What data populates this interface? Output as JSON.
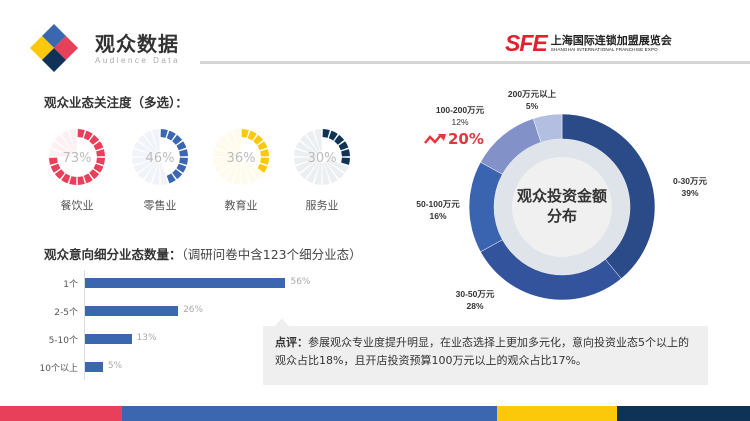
{
  "header": {
    "title": "观众数据",
    "subtitle": "Audience Data",
    "brand_mark": "SFE",
    "brand_cn": "上海国际连锁加盟展览会",
    "brand_en": "SHANGHAI INTERNATIONAL FRANCHISE EXPO"
  },
  "colors": {
    "red": "#e8405a",
    "blue": "#3b66b0",
    "yellow": "#fcc80a",
    "navy": "#0f3257",
    "accent_red": "#e8343f"
  },
  "section1": {
    "title": "观众业态关注度（多选）："
  },
  "section2": {
    "title": "观众意向细分业态数量：",
    "note": "（调研问卷中含123个细分业态）"
  },
  "comment": {
    "label": "点评：",
    "text": "参展观众专业度提升明显，在业态选择上更加多元化，意向投资业态5个以上的观众占比18%，且开店投资预算100万元以上的观众占比17%。"
  },
  "growth": {
    "icon": "trend-up-icon",
    "value": "20%"
  },
  "chart_data": [
    {
      "type": "radial-gauge",
      "categories": [
        "餐饮业",
        "零售业",
        "教育业",
        "服务业"
      ],
      "values": [
        73,
        46,
        36,
        30
      ],
      "labels": [
        "73%",
        "46%",
        "36%",
        "30%"
      ],
      "colors": [
        "#e8405a",
        "#3b66b0",
        "#fcc80a",
        "#0f3257"
      ]
    },
    {
      "type": "bar",
      "orientation": "horizontal",
      "categories": [
        "1个",
        "2-5个",
        "5-10个",
        "10个以上"
      ],
      "values": [
        56,
        26,
        13,
        5
      ],
      "labels": [
        "56%",
        "26%",
        "13%",
        "5%"
      ],
      "color": "#3b66b0"
    },
    {
      "type": "pie",
      "variant": "donut",
      "title": "观众投资金额分布",
      "categories": [
        "0-30万元",
        "30-50万元",
        "50-100万元",
        "100-200万元",
        "200万元以上"
      ],
      "values": [
        39,
        28,
        16,
        12,
        5
      ],
      "labels": [
        "39%",
        "28%",
        "16%",
        "12%",
        "5%"
      ],
      "colors": [
        "#2a4a88",
        "#33549c",
        "#3a64b0",
        "#8391c9",
        "#b3bfe0"
      ]
    }
  ]
}
